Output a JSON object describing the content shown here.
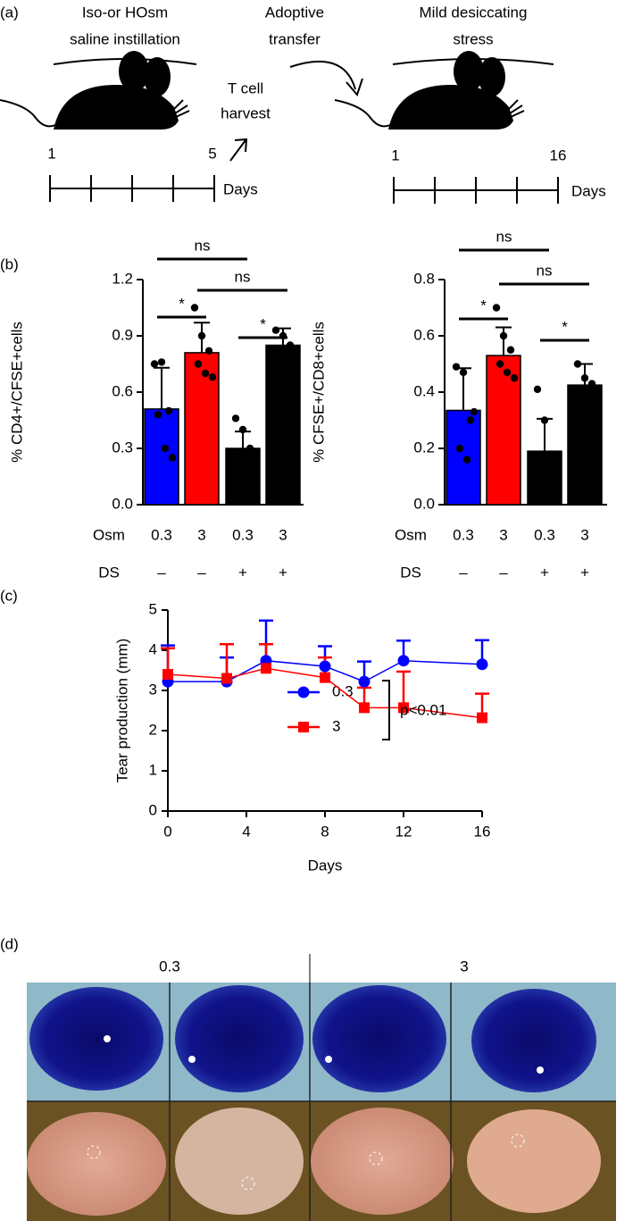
{
  "panel_a": {
    "label": "(a)",
    "left_title": [
      "Iso-or HOsm",
      "saline instillation"
    ],
    "adoptive": [
      "Adoptive",
      "transfer"
    ],
    "harvest": [
      "T cell",
      "harvest"
    ],
    "right_title": [
      "Mild desiccating",
      "stress"
    ],
    "left_days": [
      "1",
      "5"
    ],
    "right_days": [
      "1",
      "16"
    ],
    "days": "Days"
  },
  "panel_b_label": "(b)",
  "panel_c_label": "(c)",
  "panel_d": {
    "label": "(d)",
    "groups": [
      "0.3",
      "3"
    ]
  },
  "chart_data": [
    {
      "type": "bar",
      "y_label": "% CD4+/CFSE+cells",
      "row_labels": [
        "Osm",
        "DS"
      ],
      "categories": [
        "0.3",
        "3",
        "0.3",
        "3"
      ],
      "ds_labels": [
        "–",
        "–",
        "+",
        "+"
      ],
      "values": [
        0.51,
        0.81,
        0.3,
        0.85
      ],
      "errors": [
        0.22,
        0.16,
        0.09,
        0.09
      ],
      "points": [
        [
          0.75,
          0.76,
          0.5,
          0.48,
          0.3,
          0.25
        ],
        [
          1.05,
          0.9,
          0.82,
          0.75,
          0.7,
          0.68
        ],
        [
          0.46,
          0.4,
          0.3,
          0.25,
          0.22
        ],
        [
          0.93,
          0.9,
          0.85,
          0.8,
          0.76
        ]
      ],
      "colors": [
        "#0000ff",
        "#ff0000",
        "#0000ff",
        "#ff0000"
      ],
      "hatched": [
        false,
        false,
        true,
        true
      ],
      "annotations": [
        "ns",
        "ns",
        "*",
        "*"
      ],
      "ylim": [
        0,
        1.2
      ],
      "yticks": [
        {
          "value": 0,
          "label": "0.0"
        },
        0.3,
        0.6,
        0.9,
        1.2
      ]
    },
    {
      "type": "bar",
      "y_label": "% CFSE+/CD8+cells",
      "row_labels": [
        "Osm",
        "DS"
      ],
      "categories": [
        "0.3",
        "3",
        "0.3",
        "3"
      ],
      "ds_labels": [
        "–",
        "–",
        "+",
        "+"
      ],
      "values": [
        0.335,
        0.53,
        0.19,
        0.425
      ],
      "errors": [
        0.15,
        0.1,
        0.115,
        0.075
      ],
      "points": [
        [
          0.49,
          0.47,
          0.3,
          0.2,
          0.16,
          0.33
        ],
        [
          0.7,
          0.6,
          0.55,
          0.5,
          0.47,
          0.45
        ],
        [
          0.41,
          0.3,
          0.17,
          0.12,
          0.1
        ],
        [
          0.5,
          0.45,
          0.43,
          0.4,
          0.37,
          0.35
        ]
      ],
      "colors": [
        "#0000ff",
        "#ff0000",
        "#0000ff",
        "#ff0000"
      ],
      "hatched": [
        false,
        false,
        true,
        true
      ],
      "annotations": [
        "ns",
        "ns",
        "*",
        "*"
      ],
      "ylim": [
        0,
        0.8
      ],
      "yticks": [
        {
          "value": 0,
          "label": "0.0"
        },
        0.2,
        0.4,
        0.6,
        0.8
      ]
    },
    {
      "type": "line",
      "y_label": "Tear production (mm)",
      "x_label": "Days",
      "annotation": "p<0.01",
      "x": [
        0,
        3,
        5,
        8,
        10,
        12,
        16
      ],
      "series": [
        {
          "name": "0.3",
          "color": "#0000ff",
          "marker": "circle",
          "values": [
            3.22,
            3.22,
            3.74,
            3.6,
            3.22,
            3.74,
            3.65
          ],
          "errors": [
            0.9,
            0.6,
            1.0,
            0.5,
            0.5,
            0.5,
            0.6
          ]
        },
        {
          "name": "3",
          "color": "#ff0000",
          "marker": "square",
          "values": [
            3.4,
            3.3,
            3.55,
            3.32,
            2.57,
            2.57,
            2.32
          ],
          "errors": [
            0.65,
            0.85,
            0.6,
            0.5,
            0.5,
            0.9,
            0.6
          ]
        }
      ],
      "xlim": [
        0,
        16
      ],
      "xticks": [
        0,
        4,
        8,
        12,
        16
      ],
      "ylim": [
        0,
        5
      ],
      "yticks": [
        0,
        1,
        2,
        3,
        4,
        5
      ]
    }
  ]
}
